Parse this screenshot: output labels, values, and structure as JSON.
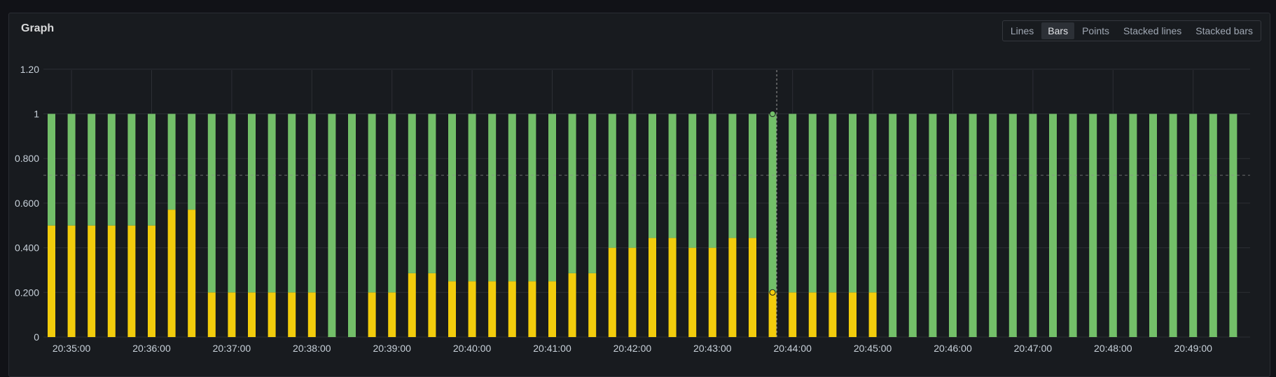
{
  "panel": {
    "title": "Graph",
    "modes": [
      "Lines",
      "Bars",
      "Points",
      "Stacked lines",
      "Stacked bars"
    ],
    "active_mode": "Bars"
  },
  "colors": {
    "background": "#181b1f",
    "grid": "#2c2f35",
    "green": "#73bf69",
    "yellow": "#f2cc0c",
    "text": "#c7d0d9"
  },
  "chart_data": {
    "type": "bar",
    "stacked": true,
    "title": "Graph",
    "ylim": [
      0,
      1.2
    ],
    "yticks": [
      0,
      0.2,
      0.4,
      0.6,
      0.8,
      1,
      1.2
    ],
    "ytick_labels": [
      "0",
      "0.200",
      "0.400",
      "0.600",
      "0.800",
      "1",
      "1.20"
    ],
    "x_start_seconds": 0,
    "x_step_seconds": 15,
    "xtick_labels": [
      "20:35:00",
      "20:36:00",
      "20:37:00",
      "20:38:00",
      "20:39:00",
      "20:40:00",
      "20:41:00",
      "20:42:00",
      "20:43:00",
      "20:44:00",
      "20:45:00",
      "20:46:00",
      "20:47:00",
      "20:48:00",
      "20:49:00"
    ],
    "series": [
      {
        "name": "yellow",
        "color": "#f2cc0c",
        "values": [
          0.5,
          0.5,
          0.5,
          0.5,
          0.5,
          0.5,
          0.571,
          0.571,
          0.2,
          0.2,
          0.2,
          0.2,
          0.2,
          0.2,
          0,
          0,
          0.2,
          0.2,
          0.286,
          0.286,
          0.25,
          0.25,
          0.25,
          0.25,
          0.25,
          0.25,
          0.286,
          0.286,
          0.4,
          0.4,
          0.444,
          0.444,
          0.4,
          0.4,
          0.444,
          0.444,
          0.2,
          0.2,
          0.2,
          0.2,
          0.2,
          0.2,
          0,
          0,
          0,
          0,
          0,
          0,
          0,
          0,
          0,
          0,
          0,
          0,
          0,
          0,
          0,
          0,
          0,
          0
        ]
      },
      {
        "name": "green",
        "color": "#73bf69",
        "values": [
          0.5,
          0.5,
          0.5,
          0.5,
          0.5,
          0.5,
          0.429,
          0.429,
          0.8,
          0.8,
          0.8,
          0.8,
          0.8,
          0.8,
          1,
          1,
          0.8,
          0.8,
          0.714,
          0.714,
          0.75,
          0.75,
          0.75,
          0.75,
          0.75,
          0.75,
          0.714,
          0.714,
          0.6,
          0.6,
          0.556,
          0.556,
          0.6,
          0.6,
          0.556,
          0.556,
          0.8,
          0.8,
          0.8,
          0.8,
          0.8,
          0.8,
          1,
          1,
          1,
          1,
          1,
          1,
          1,
          1,
          1,
          1,
          1,
          1,
          1,
          1,
          1,
          1,
          1,
          1
        ]
      }
    ],
    "hover_index": 36,
    "threshold_line": 0.725
  }
}
